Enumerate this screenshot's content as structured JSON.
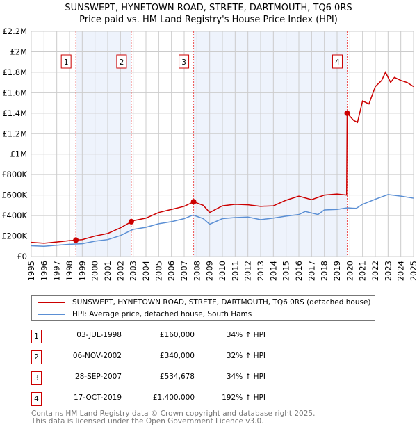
{
  "title": "SUNSWEPT, HYNETOWN ROAD, STRETE, DARTMOUTH, TQ6 0RS",
  "subtitle": "Price paid vs. HM Land Registry's House Price Index (HPI)",
  "chart_data": {
    "type": "line",
    "xlim": [
      1995,
      2025
    ],
    "ylim": [
      0,
      2200000
    ],
    "y_ticks": [
      0,
      200000,
      400000,
      600000,
      800000,
      1000000,
      1200000,
      1400000,
      1600000,
      1800000,
      2000000,
      2200000
    ],
    "y_tick_labels": [
      "£0",
      "£200K",
      "£400K",
      "£600K",
      "£800K",
      "£1M",
      "£1.2M",
      "£1.4M",
      "£1.6M",
      "£1.8M",
      "£2M",
      "£2.2M"
    ],
    "x_ticks": [
      1995,
      1996,
      1997,
      1998,
      1999,
      2000,
      2001,
      2002,
      2003,
      2004,
      2005,
      2006,
      2007,
      2008,
      2009,
      2010,
      2011,
      2012,
      2013,
      2014,
      2015,
      2016,
      2017,
      2018,
      2019,
      2020,
      2021,
      2022,
      2023,
      2024,
      2025
    ],
    "grid": true,
    "legend_placement": "below",
    "colors": {
      "property": "#cc0000",
      "hpi": "#5b8fd4",
      "shade": "#eef3fc"
    },
    "series": [
      {
        "name": "SUNSWEPT, HYNETOWN ROAD, STRETE, DARTMOUTH, TQ6 0RS (detached house)",
        "x": [
          1995,
          1996,
          1997,
          1998,
          1998.5,
          1999,
          2000,
          2001,
          2002,
          2002.85,
          2003,
          2004,
          2005,
          2006,
          2007,
          2007.75,
          2008.5,
          2009,
          2010,
          2011,
          2012,
          2013,
          2014,
          2015,
          2016,
          2017,
          2018,
          2019,
          2019.75,
          2019.79,
          2020.3,
          2020.6,
          2021,
          2021.5,
          2022,
          2022.5,
          2022.8,
          2023.2,
          2023.5,
          2024,
          2024.5,
          2025
        ],
        "y": [
          138000,
          130000,
          142000,
          155000,
          160000,
          165000,
          200000,
          225000,
          280000,
          340000,
          350000,
          375000,
          430000,
          460000,
          490000,
          534678,
          500000,
          430000,
          495000,
          510000,
          505000,
          490000,
          495000,
          550000,
          590000,
          555000,
          600000,
          610000,
          600000,
          1400000,
          1330000,
          1310000,
          1520000,
          1490000,
          1660000,
          1720000,
          1800000,
          1700000,
          1750000,
          1720000,
          1700000,
          1660000
        ]
      },
      {
        "name": "HPI: Average price, detached house, South Hams",
        "x": [
          1995,
          1996,
          1997,
          1998,
          1999,
          2000,
          2001,
          2002,
          2003,
          2004,
          2005,
          2006,
          2007,
          2007.7,
          2008.5,
          2009,
          2010,
          2011,
          2012,
          2013,
          2014,
          2015,
          2016,
          2016.5,
          2017.5,
          2018,
          2019,
          2019.8,
          2020.5,
          2021,
          2022,
          2023,
          2024,
          2025
        ],
        "y": [
          105000,
          100000,
          110000,
          120000,
          125000,
          150000,
          165000,
          205000,
          265000,
          285000,
          320000,
          340000,
          370000,
          405000,
          370000,
          315000,
          370000,
          380000,
          385000,
          360000,
          375000,
          395000,
          410000,
          440000,
          410000,
          455000,
          460000,
          475000,
          470000,
          510000,
          560000,
          605000,
          590000,
          570000
        ]
      }
    ],
    "sales": [
      {
        "label": "1",
        "x": 1998.5,
        "y": 160000,
        "date": "03-JUL-1998",
        "price": "£160,000",
        "hpi": "34% ↑ HPI"
      },
      {
        "label": "2",
        "x": 2002.85,
        "y": 340000,
        "date": "06-NOV-2002",
        "price": "£340,000",
        "hpi": "32% ↑ HPI"
      },
      {
        "label": "3",
        "x": 2007.74,
        "y": 534678,
        "date": "28-SEP-2007",
        "price": "£534,678",
        "hpi": "34% ↑ HPI"
      },
      {
        "label": "4",
        "x": 2019.79,
        "y": 1400000,
        "date": "17-OCT-2019",
        "price": "£1,400,000",
        "hpi": "192% ↑ HPI"
      }
    ]
  },
  "footer": {
    "line1": "Contains HM Land Registry data © Crown copyright and database right 2025.",
    "line2": "This data is licensed under the Open Government Licence v3.0."
  }
}
